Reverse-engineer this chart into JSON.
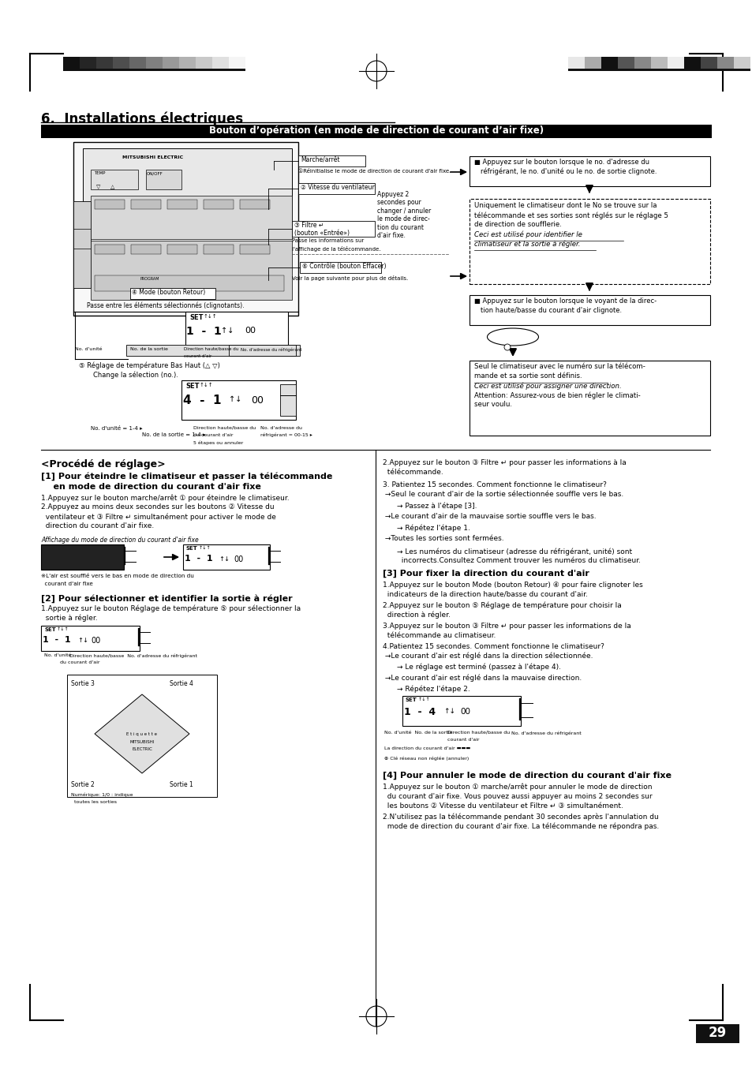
{
  "page_bg": "#ffffff",
  "page_num": "29",
  "title_section": "6.  Installations électriques",
  "header_bar_text": "Bouton d’opération (en mode de direction de courant d’air fixe)",
  "gs_left": [
    "#111111",
    "#252525",
    "#383838",
    "#4e4e4e",
    "#676767",
    "#808080",
    "#999999",
    "#b2b2b2",
    "#c9c9c9",
    "#e0e0e0",
    "#f5f5f5"
  ],
  "gs_right": [
    "#e8e8e8",
    "#aaaaaa",
    "#111111",
    "#555555",
    "#888888",
    "#bbbbbb",
    "#eeeeee",
    "#111111",
    "#444444",
    "#888888",
    "#cccccc"
  ]
}
